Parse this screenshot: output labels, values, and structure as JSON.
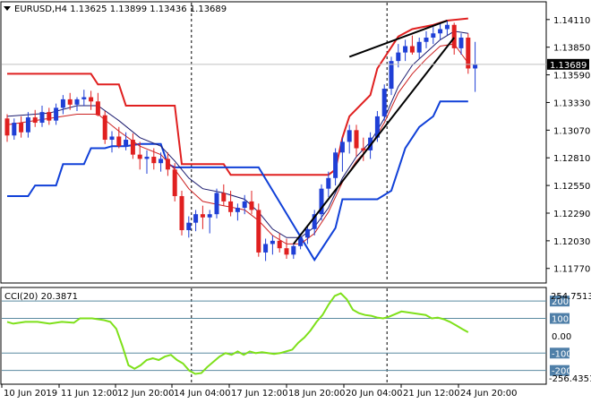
{
  "symbol_line": "EURUSD,H4  1.13625 1.13899 1.13436 1.13689",
  "current_price_label": "1.13689",
  "chart_data": {
    "type": "candlestick",
    "symbol": "EURUSD",
    "timeframe": "H4",
    "ohlc_header": {
      "open": 1.13625,
      "high": 1.13899,
      "low": 1.13436,
      "close": 1.13689
    },
    "current_price": 1.13689,
    "price_axis": {
      "range": [
        1.1165,
        1.1426
      ],
      "ticks": [
        "1.14110",
        "1.13850",
        "1.13590",
        "1.13330",
        "1.13070",
        "1.12810",
        "1.12550",
        "1.12290",
        "1.12030",
        "1.11770"
      ]
    },
    "x_tick_labels": [
      "10 Jun 2019",
      "11 Jun 12:00",
      "12 Jun 20:00",
      "14 Jun 04:00",
      "17 Jun 12:00",
      "18 Jun 20:00",
      "20 Jun 04:00",
      "21 Jun 12:00",
      "24 Jun 20:00"
    ],
    "candles": [
      [
        1.1318,
        1.1322,
        1.1296,
        1.1302
      ],
      [
        1.1302,
        1.1318,
        1.1298,
        1.1314
      ],
      [
        1.1314,
        1.132,
        1.13,
        1.1305
      ],
      [
        1.1305,
        1.1324,
        1.13,
        1.1319
      ],
      [
        1.1319,
        1.1326,
        1.131,
        1.1314
      ],
      [
        1.1314,
        1.133,
        1.131,
        1.1324
      ],
      [
        1.1324,
        1.1328,
        1.1312,
        1.1316
      ],
      [
        1.1316,
        1.1332,
        1.1312,
        1.1328
      ],
      [
        1.1328,
        1.134,
        1.1322,
        1.1336
      ],
      [
        1.1336,
        1.1342,
        1.1326,
        1.1331
      ],
      [
        1.1331,
        1.1338,
        1.1325,
        1.1336
      ],
      [
        1.1336,
        1.1345,
        1.133,
        1.1338
      ],
      [
        1.1338,
        1.1344,
        1.1326,
        1.1334
      ],
      [
        1.1334,
        1.1342,
        1.132,
        1.1321
      ],
      [
        1.1321,
        1.1325,
        1.1294,
        1.1298
      ],
      [
        1.1298,
        1.1306,
        1.1286,
        1.1301
      ],
      [
        1.1301,
        1.131,
        1.129,
        1.1292
      ],
      [
        1.1292,
        1.1305,
        1.1288,
        1.1298
      ],
      [
        1.1298,
        1.1304,
        1.128,
        1.1284
      ],
      [
        1.1284,
        1.1296,
        1.127,
        1.128
      ],
      [
        1.128,
        1.1288,
        1.1266,
        1.1282
      ],
      [
        1.1282,
        1.129,
        1.127,
        1.1276
      ],
      [
        1.1276,
        1.1286,
        1.1268,
        1.128
      ],
      [
        1.128,
        1.1286,
        1.1264,
        1.127
      ],
      [
        1.127,
        1.1276,
        1.124,
        1.1245
      ],
      [
        1.1245,
        1.125,
        1.1208,
        1.1213
      ],
      [
        1.1213,
        1.1226,
        1.1206,
        1.122
      ],
      [
        1.122,
        1.1232,
        1.1212,
        1.1228
      ],
      [
        1.1228,
        1.1236,
        1.1214,
        1.1225
      ],
      [
        1.1225,
        1.1232,
        1.121,
        1.1228
      ],
      [
        1.1228,
        1.1252,
        1.1224,
        1.1248
      ],
      [
        1.1248,
        1.1256,
        1.1236,
        1.124
      ],
      [
        1.124,
        1.125,
        1.1226,
        1.123
      ],
      [
        1.123,
        1.1238,
        1.1222,
        1.1234
      ],
      [
        1.1234,
        1.1246,
        1.1228,
        1.124
      ],
      [
        1.124,
        1.125,
        1.1228,
        1.1232
      ],
      [
        1.1232,
        1.1238,
        1.1188,
        1.1192
      ],
      [
        1.1192,
        1.1205,
        1.1184,
        1.12
      ],
      [
        1.12,
        1.1208,
        1.119,
        1.1203
      ],
      [
        1.1203,
        1.121,
        1.1192,
        1.1196
      ],
      [
        1.1196,
        1.1205,
        1.1186,
        1.119
      ],
      [
        1.119,
        1.12,
        1.1186,
        1.1198
      ],
      [
        1.1198,
        1.121,
        1.1195,
        1.1206
      ],
      [
        1.1206,
        1.1218,
        1.12,
        1.1214
      ],
      [
        1.1214,
        1.1232,
        1.1208,
        1.1228
      ],
      [
        1.1228,
        1.1256,
        1.1222,
        1.1252
      ],
      [
        1.1252,
        1.1268,
        1.1244,
        1.1262
      ],
      [
        1.1262,
        1.129,
        1.1255,
        1.1286
      ],
      [
        1.1286,
        1.13,
        1.1268,
        1.1296
      ],
      [
        1.1296,
        1.1312,
        1.1285,
        1.1307
      ],
      [
        1.1307,
        1.1312,
        1.1282,
        1.129
      ],
      [
        1.129,
        1.13,
        1.1278,
        1.1288
      ],
      [
        1.1288,
        1.1305,
        1.128,
        1.13
      ],
      [
        1.13,
        1.1325,
        1.1296,
        1.132
      ],
      [
        1.132,
        1.135,
        1.1316,
        1.1346
      ],
      [
        1.1346,
        1.1376,
        1.134,
        1.1372
      ],
      [
        1.1372,
        1.1388,
        1.1366,
        1.138
      ],
      [
        1.138,
        1.1392,
        1.1372,
        1.1386
      ],
      [
        1.1386,
        1.1396,
        1.1378,
        1.138
      ],
      [
        1.138,
        1.1394,
        1.1374,
        1.139
      ],
      [
        1.139,
        1.14,
        1.1384,
        1.1394
      ],
      [
        1.1394,
        1.1404,
        1.1388,
        1.1398
      ],
      [
        1.1398,
        1.1408,
        1.1392,
        1.1402
      ],
      [
        1.1402,
        1.141,
        1.1396,
        1.1406
      ],
      [
        1.1406,
        1.1408,
        1.1378,
        1.1384
      ],
      [
        1.1384,
        1.1398,
        1.1378,
        1.1394
      ],
      [
        1.1394,
        1.1398,
        1.136,
        1.1365
      ],
      [
        1.1365,
        1.139,
        1.1343,
        1.1369
      ]
    ],
    "upper_band": [
      [
        0,
        1.136
      ],
      [
        12,
        1.136
      ],
      [
        13,
        1.135
      ],
      [
        16,
        1.135
      ],
      [
        17,
        1.133
      ],
      [
        24,
        1.133
      ],
      [
        25,
        1.1275
      ],
      [
        31,
        1.1275
      ],
      [
        32,
        1.1265
      ],
      [
        46,
        1.1265
      ],
      [
        47,
        1.127
      ],
      [
        48,
        1.13
      ],
      [
        49,
        1.132
      ],
      [
        52,
        1.134
      ],
      [
        53,
        1.1365
      ],
      [
        56,
        1.1395
      ],
      [
        58,
        1.1402
      ],
      [
        61,
        1.1406
      ],
      [
        63,
        1.141
      ],
      [
        66,
        1.1412
      ]
    ],
    "lower_band": [
      [
        0,
        1.1245
      ],
      [
        3,
        1.1245
      ],
      [
        4,
        1.1255
      ],
      [
        7,
        1.1255
      ],
      [
        8,
        1.1275
      ],
      [
        11,
        1.1275
      ],
      [
        12,
        1.129
      ],
      [
        14,
        1.129
      ],
      [
        15,
        1.1292
      ],
      [
        17,
        1.1292
      ],
      [
        19,
        1.1294
      ],
      [
        22,
        1.1294
      ],
      [
        23,
        1.1275
      ],
      [
        24,
        1.1272
      ],
      [
        36,
        1.1272
      ],
      [
        44,
        1.1185
      ],
      [
        47,
        1.1215
      ],
      [
        48,
        1.1242
      ],
      [
        53,
        1.1242
      ],
      [
        55,
        1.125
      ],
      [
        56,
        1.127
      ],
      [
        57,
        1.129
      ],
      [
        59,
        1.131
      ],
      [
        61,
        1.132
      ],
      [
        62,
        1.1334
      ],
      [
        66,
        1.1334
      ]
    ],
    "ma_slow": [
      [
        0,
        1.132
      ],
      [
        6,
        1.1323
      ],
      [
        10,
        1.133
      ],
      [
        13,
        1.133
      ],
      [
        16,
        1.1316
      ],
      [
        19,
        1.13
      ],
      [
        22,
        1.1292
      ],
      [
        24,
        1.1278
      ],
      [
        26,
        1.1262
      ],
      [
        28,
        1.1252
      ],
      [
        31,
        1.1248
      ],
      [
        34,
        1.1242
      ],
      [
        36,
        1.123
      ],
      [
        38,
        1.1214
      ],
      [
        40,
        1.1206
      ],
      [
        42,
        1.1206
      ],
      [
        44,
        1.1216
      ],
      [
        46,
        1.1234
      ],
      [
        48,
        1.1262
      ],
      [
        50,
        1.1282
      ],
      [
        52,
        1.1296
      ],
      [
        54,
        1.1318
      ],
      [
        56,
        1.1348
      ],
      [
        58,
        1.1368
      ],
      [
        60,
        1.138
      ],
      [
        62,
        1.1392
      ],
      [
        64,
        1.14
      ],
      [
        66,
        1.1398
      ]
    ],
    "ma_fast": [
      [
        0,
        1.1312
      ],
      [
        6,
        1.1318
      ],
      [
        10,
        1.1322
      ],
      [
        13,
        1.1322
      ],
      [
        16,
        1.1306
      ],
      [
        19,
        1.1292
      ],
      [
        22,
        1.1284
      ],
      [
        24,
        1.127
      ],
      [
        26,
        1.1252
      ],
      [
        28,
        1.124
      ],
      [
        31,
        1.1236
      ],
      [
        34,
        1.1232
      ],
      [
        36,
        1.1222
      ],
      [
        38,
        1.1208
      ],
      [
        40,
        1.12
      ],
      [
        42,
        1.12
      ],
      [
        44,
        1.121
      ],
      [
        46,
        1.123
      ],
      [
        48,
        1.1258
      ],
      [
        50,
        1.1278
      ],
      [
        52,
        1.1292
      ],
      [
        54,
        1.1314
      ],
      [
        56,
        1.1342
      ],
      [
        58,
        1.136
      ],
      [
        60,
        1.1374
      ],
      [
        62,
        1.1386
      ],
      [
        64,
        1.1388
      ],
      [
        66,
        1.137
      ]
    ],
    "trendlines": [
      [
        [
          41,
          1.12
        ],
        [
          64,
          1.1394
        ]
      ],
      [
        [
          49,
          1.1376
        ],
        [
          63,
          1.141
        ]
      ]
    ],
    "vertical_lines_at": [
      26,
      54
    ],
    "cci": {
      "label": "CCI(20) 20.3871",
      "axis_range": [
        -274,
        268
      ],
      "axis_top_label": "254.7513",
      "axis_bottom_label": "-256.4351",
      "level_ticks": [
        "200",
        "100",
        "0.00",
        "-100",
        "-200"
      ],
      "levels": [
        200,
        100,
        -100,
        -200
      ],
      "values": [
        [
          0,
          80
        ],
        [
          1,
          70
        ],
        [
          3,
          80
        ],
        [
          5,
          80
        ],
        [
          7,
          70
        ],
        [
          9,
          80
        ],
        [
          11,
          75
        ],
        [
          12,
          100
        ],
        [
          14,
          100
        ],
        [
          16,
          90
        ],
        [
          17,
          80
        ],
        [
          18,
          40
        ],
        [
          19,
          -60
        ],
        [
          20,
          -170
        ],
        [
          21,
          -190
        ],
        [
          22,
          -170
        ],
        [
          23,
          -140
        ],
        [
          24,
          -130
        ],
        [
          25,
          -140
        ],
        [
          26,
          -120
        ],
        [
          27,
          -110
        ],
        [
          28,
          -140
        ],
        [
          29,
          -160
        ],
        [
          30,
          -200
        ],
        [
          31,
          -220
        ],
        [
          32,
          -215
        ],
        [
          33,
          -180
        ],
        [
          34,
          -150
        ],
        [
          35,
          -120
        ],
        [
          36,
          -100
        ],
        [
          37,
          -110
        ],
        [
          38,
          -90
        ],
        [
          39,
          -110
        ],
        [
          40,
          -90
        ],
        [
          41,
          -100
        ],
        [
          42,
          -95
        ],
        [
          43,
          -100
        ],
        [
          44,
          -105
        ],
        [
          45,
          -100
        ],
        [
          46,
          -90
        ],
        [
          47,
          -80
        ],
        [
          48,
          -40
        ],
        [
          49,
          -10
        ],
        [
          50,
          30
        ],
        [
          51,
          80
        ],
        [
          52,
          120
        ],
        [
          53,
          180
        ],
        [
          54,
          230
        ],
        [
          55,
          245
        ],
        [
          56,
          210
        ],
        [
          57,
          150
        ],
        [
          58,
          130
        ],
        [
          59,
          120
        ],
        [
          60,
          115
        ],
        [
          61,
          105
        ],
        [
          62,
          100
        ],
        [
          63,
          110
        ],
        [
          64,
          125
        ],
        [
          65,
          140
        ],
        [
          66,
          135
        ],
        [
          67,
          130
        ],
        [
          68,
          125
        ],
        [
          69,
          120
        ],
        [
          70,
          100
        ],
        [
          71,
          105
        ],
        [
          72,
          95
        ],
        [
          73,
          80
        ],
        [
          74,
          60
        ],
        [
          75,
          40
        ],
        [
          76,
          20
        ]
      ]
    }
  }
}
